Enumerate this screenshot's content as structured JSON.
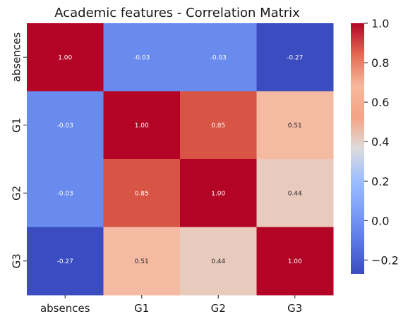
{
  "chart_data": {
    "type": "heatmap",
    "title": "Academic features - Correlation Matrix",
    "x_labels": [
      "absences",
      "G1",
      "G2",
      "G3"
    ],
    "y_labels": [
      "absences",
      "G1",
      "G2",
      "G3"
    ],
    "values": [
      [
        1.0,
        -0.03,
        -0.03,
        -0.27
      ],
      [
        -0.03,
        1.0,
        0.85,
        0.51
      ],
      [
        -0.03,
        0.85,
        1.0,
        0.44
      ],
      [
        -0.27,
        0.51,
        0.44,
        1.0
      ]
    ],
    "value_format": "0.00",
    "colormap": "coolwarm",
    "color_range": [
      -0.27,
      1.0
    ],
    "colorbar_ticks": [
      "1.0",
      "0.8",
      "0.6",
      "0.4",
      "0.2",
      "0.0",
      "−0.2"
    ],
    "colorbar_tick_values": [
      1.0,
      0.8,
      0.6,
      0.4,
      0.2,
      0.0,
      -0.2
    ],
    "colorbar_position": "right"
  }
}
